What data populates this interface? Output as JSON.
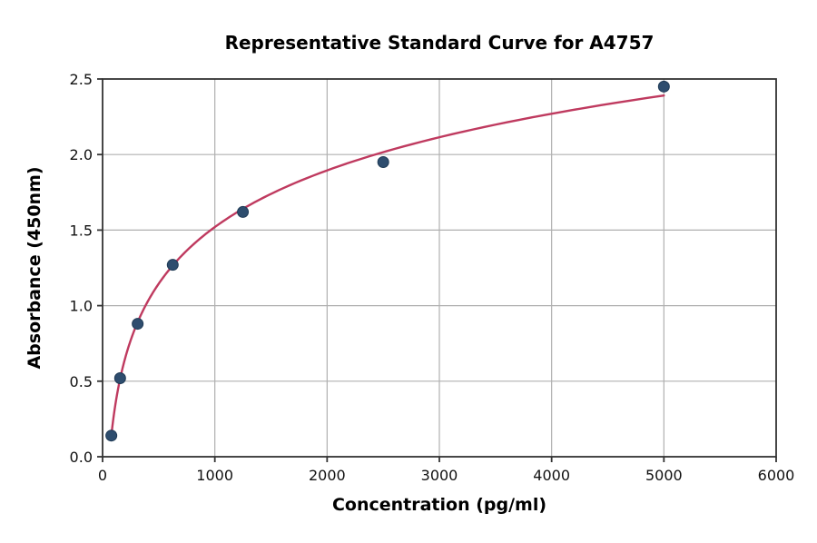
{
  "chart": {
    "title": "Representative Standard Curve for A4757",
    "xlabel": "Concentration (pg/ml)",
    "ylabel": "Absorbance (450nm)"
  },
  "chart_data": {
    "type": "scatter",
    "title": "Representative Standard Curve for A4757",
    "xlabel": "Concentration (pg/ml)",
    "ylabel": "Absorbance (450nm)",
    "xlim": [
      0,
      6000
    ],
    "ylim": [
      0,
      2.5
    ],
    "x_ticks": [
      0,
      1000,
      2000,
      3000,
      4000,
      5000,
      6000
    ],
    "y_ticks": [
      0,
      0.5,
      1,
      1.5,
      2,
      2.5
    ],
    "grid": true,
    "legend": "none",
    "points": {
      "x": [
        78.1,
        156.3,
        312.5,
        625,
        1250,
        2500,
        5000
      ],
      "y": [
        0.14,
        0.52,
        0.88,
        1.27,
        1.62,
        1.95,
        2.45
      ]
    },
    "fit_curve": {
      "type": "logarithmic",
      "equation": "y = 0.541*ln(x) - 2.217",
      "a": 0.541,
      "b": -2.217,
      "x_start": 78.1,
      "x_end": 5000
    },
    "colors": {
      "points": "#2e4d6e",
      "point_edge": "#1f3a55",
      "curve": "#bf3a5f",
      "grid": "#b0b0b0",
      "axis": "#333333"
    }
  }
}
